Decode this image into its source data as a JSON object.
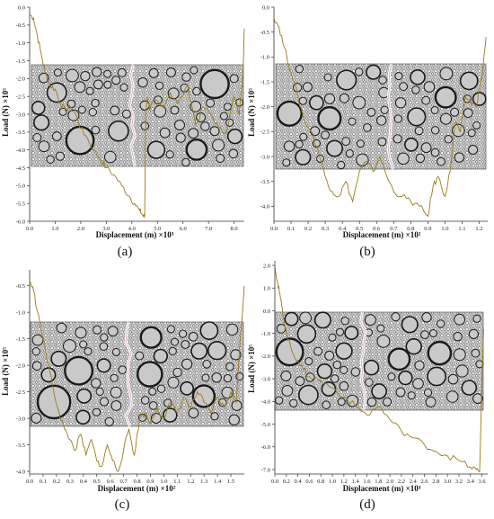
{
  "chart_data": [
    {
      "id": "a",
      "type": "line",
      "panel_label": "(a)",
      "xlabel": "Displacement (m) ×10³",
      "ylabel": "Load (N) ×10⁵",
      "xlim": [
        0,
        8.4
      ],
      "ylim": [
        -6.0,
        0.0
      ],
      "xticks": [
        "0.0",
        "1.0",
        "2.0",
        "3.0",
        "4.0",
        "5.0",
        "6.0",
        "7.0",
        "8.0"
      ],
      "xtick_values": [
        0,
        1,
        2,
        3,
        4,
        5,
        6,
        7,
        8
      ],
      "yticks": [
        "0.0",
        "-0.5",
        "-1.0",
        "-1.5",
        "-2.0",
        "-2.5",
        "-3.0",
        "-3.5",
        "-4.0",
        "-4.5",
        "-5.0",
        "-5.5",
        "-6.0"
      ],
      "ytick_values": [
        0,
        -0.5,
        -1,
        -1.5,
        -2,
        -2.5,
        -3,
        -3.5,
        -4,
        -4.5,
        -5,
        -5.5,
        -6
      ],
      "line_color": "#9a7a1a",
      "x": [
        0,
        0.15,
        0.3,
        0.45,
        0.6,
        0.8,
        1.0,
        1.2,
        1.4,
        1.6,
        1.8,
        2.0,
        2.2,
        2.5,
        2.8,
        3.0,
        3.3,
        3.6,
        3.9,
        4.1,
        4.3,
        4.4,
        4.5,
        4.55,
        4.6,
        4.7,
        4.9,
        5.2,
        5.5,
        5.8,
        6.2,
        6.5,
        6.8,
        7.1,
        7.4,
        7.7,
        8.0,
        8.2,
        8.35,
        8.4
      ],
      "y": [
        -0.2,
        -0.3,
        -0.8,
        -1.3,
        -1.8,
        -2.2,
        -2.3,
        -2.7,
        -2.9,
        -2.8,
        -3.0,
        -3.4,
        -3.6,
        -4.0,
        -4.3,
        -4.5,
        -4.7,
        -5.0,
        -5.3,
        -5.5,
        -5.7,
        -5.8,
        -5.9,
        -3.0,
        -2.5,
        -2.9,
        -2.6,
        -2.8,
        -2.4,
        -2.7,
        -2.2,
        -3.3,
        -2.8,
        -3.0,
        -3.4,
        -3.5,
        -2.5,
        -3.0,
        -1.8,
        -0.6
      ]
    },
    {
      "id": "b",
      "type": "line",
      "panel_label": "(b)",
      "xlabel": "Displacement (m) ×10²",
      "ylabel": "Load (N) ×10⁵",
      "xlim": [
        0,
        1.25
      ],
      "ylim": [
        -4.3,
        0.0
      ],
      "xticks": [
        "0.0",
        "0.1",
        "0.2",
        "0.3",
        "0.4",
        "0.5",
        "0.6",
        "0.7",
        "0.8",
        "0.9",
        "1.0",
        "1.1",
        "1.2"
      ],
      "xtick_values": [
        0,
        0.1,
        0.2,
        0.3,
        0.4,
        0.5,
        0.6,
        0.7,
        0.8,
        0.9,
        1.0,
        1.1,
        1.2
      ],
      "yticks": [
        "0.0",
        "-0.5",
        "-1.0",
        "-1.5",
        "-2.0",
        "-2.5",
        "-3.0",
        "-3.5",
        "-4.0"
      ],
      "ytick_values": [
        0,
        -0.5,
        -1,
        -1.5,
        -2,
        -2.5,
        -3,
        -3.5,
        -4
      ],
      "line_color": "#9a7a1a",
      "x": [
        0,
        0.03,
        0.06,
        0.1,
        0.14,
        0.18,
        0.22,
        0.26,
        0.3,
        0.34,
        0.38,
        0.42,
        0.46,
        0.5,
        0.54,
        0.58,
        0.62,
        0.66,
        0.7,
        0.75,
        0.8,
        0.85,
        0.9,
        0.93,
        0.96,
        1.0,
        1.03,
        1.06,
        1.09,
        1.12,
        1.15,
        1.18,
        1.2,
        1.22,
        1.24
      ],
      "y": [
        -0.2,
        -0.4,
        -0.8,
        -1.3,
        -1.8,
        -2.3,
        -2.5,
        -2.9,
        -3.4,
        -3.7,
        -3.8,
        -3.5,
        -3.9,
        -3.3,
        -3.1,
        -3.3,
        -3.0,
        -3.4,
        -3.7,
        -3.8,
        -3.9,
        -4.0,
        -4.2,
        -3.6,
        -3.4,
        -3.8,
        -3.3,
        -2.3,
        -2.5,
        -1.8,
        -1.9,
        -2.0,
        -1.7,
        -1.3,
        -0.6
      ]
    },
    {
      "id": "c",
      "type": "line",
      "panel_label": "(c)",
      "xlabel": "Displacement (m) ×10²",
      "ylabel": "Load (N) ×10⁵",
      "xlim": [
        0,
        1.6
      ],
      "ylim": [
        -4.05,
        -0.2
      ],
      "xticks": [
        "0.0",
        "0.1",
        "0.2",
        "0.3",
        "0.4",
        "0.5",
        "0.6",
        "0.7",
        "0.8",
        "0.9",
        "1.0",
        "1.1",
        "1.2",
        "1.3",
        "1.4",
        "1.5"
      ],
      "xtick_values": [
        0,
        0.1,
        0.2,
        0.3,
        0.4,
        0.5,
        0.6,
        0.7,
        0.8,
        0.9,
        1.0,
        1.1,
        1.2,
        1.3,
        1.4,
        1.5
      ],
      "yticks": [
        "-0.5",
        "-1.0",
        "-1.5",
        "-2.0",
        "-2.5",
        "-3.0",
        "-3.5",
        "-4.0"
      ],
      "ytick_values": [
        -0.5,
        -1,
        -1.5,
        -2,
        -2.5,
        -3,
        -3.5,
        -4
      ],
      "line_color": "#9a7a1a",
      "x": [
        0,
        0.03,
        0.06,
        0.1,
        0.14,
        0.18,
        0.22,
        0.26,
        0.3,
        0.34,
        0.38,
        0.42,
        0.46,
        0.5,
        0.54,
        0.58,
        0.62,
        0.66,
        0.7,
        0.74,
        0.78,
        0.82,
        0.86,
        0.9,
        0.95,
        1.0,
        1.05,
        1.1,
        1.15,
        1.2,
        1.25,
        1.3,
        1.35,
        1.4,
        1.45,
        1.5,
        1.54,
        1.57,
        1.6
      ],
      "y": [
        -0.4,
        -0.6,
        -1.0,
        -1.5,
        -2.0,
        -2.5,
        -2.9,
        -3.2,
        -3.4,
        -3.6,
        -3.3,
        -3.7,
        -3.4,
        -3.8,
        -3.9,
        -3.5,
        -3.8,
        -4.0,
        -3.6,
        -3.2,
        -3.7,
        -3.0,
        -2.9,
        -3.1,
        -2.8,
        -3.0,
        -2.7,
        -2.9,
        -2.6,
        -2.8,
        -2.5,
        -2.7,
        -2.9,
        -2.6,
        -2.8,
        -2.5,
        -2.7,
        -1.5,
        -0.5
      ]
    },
    {
      "id": "d",
      "type": "line",
      "panel_label": "(d)",
      "xlabel": "Displacement (m) ×10³",
      "ylabel": "Load (N) ×10⁵",
      "xlim": [
        0,
        3.7
      ],
      "ylim": [
        -7.2,
        2.2
      ],
      "xticks": [
        "0.0",
        "0.2",
        "0.4",
        "0.6",
        "0.8",
        "1.0",
        "1.2",
        "1.4",
        "1.6",
        "1.8",
        "2.0",
        "2.2",
        "2.4",
        "2.6",
        "2.8",
        "3.0",
        "3.2",
        "3.4",
        "3.6"
      ],
      "xtick_values": [
        0,
        0.2,
        0.4,
        0.6,
        0.8,
        1.0,
        1.2,
        1.4,
        1.6,
        1.8,
        2.0,
        2.2,
        2.4,
        2.6,
        2.8,
        3.0,
        3.2,
        3.4,
        3.6
      ],
      "yticks": [
        "2.0",
        "1.0",
        "0.0",
        "-1.0",
        "-2.0",
        "-3.0",
        "-4.0",
        "-5.0",
        "-6.0",
        "-7.0"
      ],
      "ytick_values": [
        2,
        1,
        0,
        -1,
        -2,
        -3,
        -4,
        -5,
        -6,
        -7
      ],
      "line_color": "#9a7a1a",
      "x": [
        0,
        0.04,
        0.08,
        0.12,
        0.16,
        0.2,
        0.3,
        0.4,
        0.5,
        0.6,
        0.8,
        1.0,
        1.2,
        1.4,
        1.6,
        1.8,
        2.0,
        2.2,
        2.4,
        2.6,
        2.8,
        3.0,
        3.2,
        3.4,
        3.5,
        3.56,
        3.6,
        3.63
      ],
      "y": [
        2.1,
        1.3,
        0.8,
        0.2,
        -0.4,
        -1.0,
        -1.8,
        -2.2,
        -2.6,
        -2.9,
        -3.1,
        -3.4,
        -3.8,
        -4.2,
        -4.6,
        -4.2,
        -4.8,
        -5.3,
        -5.6,
        -5.9,
        -6.2,
        -6.4,
        -6.6,
        -6.9,
        -7.0,
        -7.1,
        -3.0,
        -0.8
      ]
    }
  ]
}
